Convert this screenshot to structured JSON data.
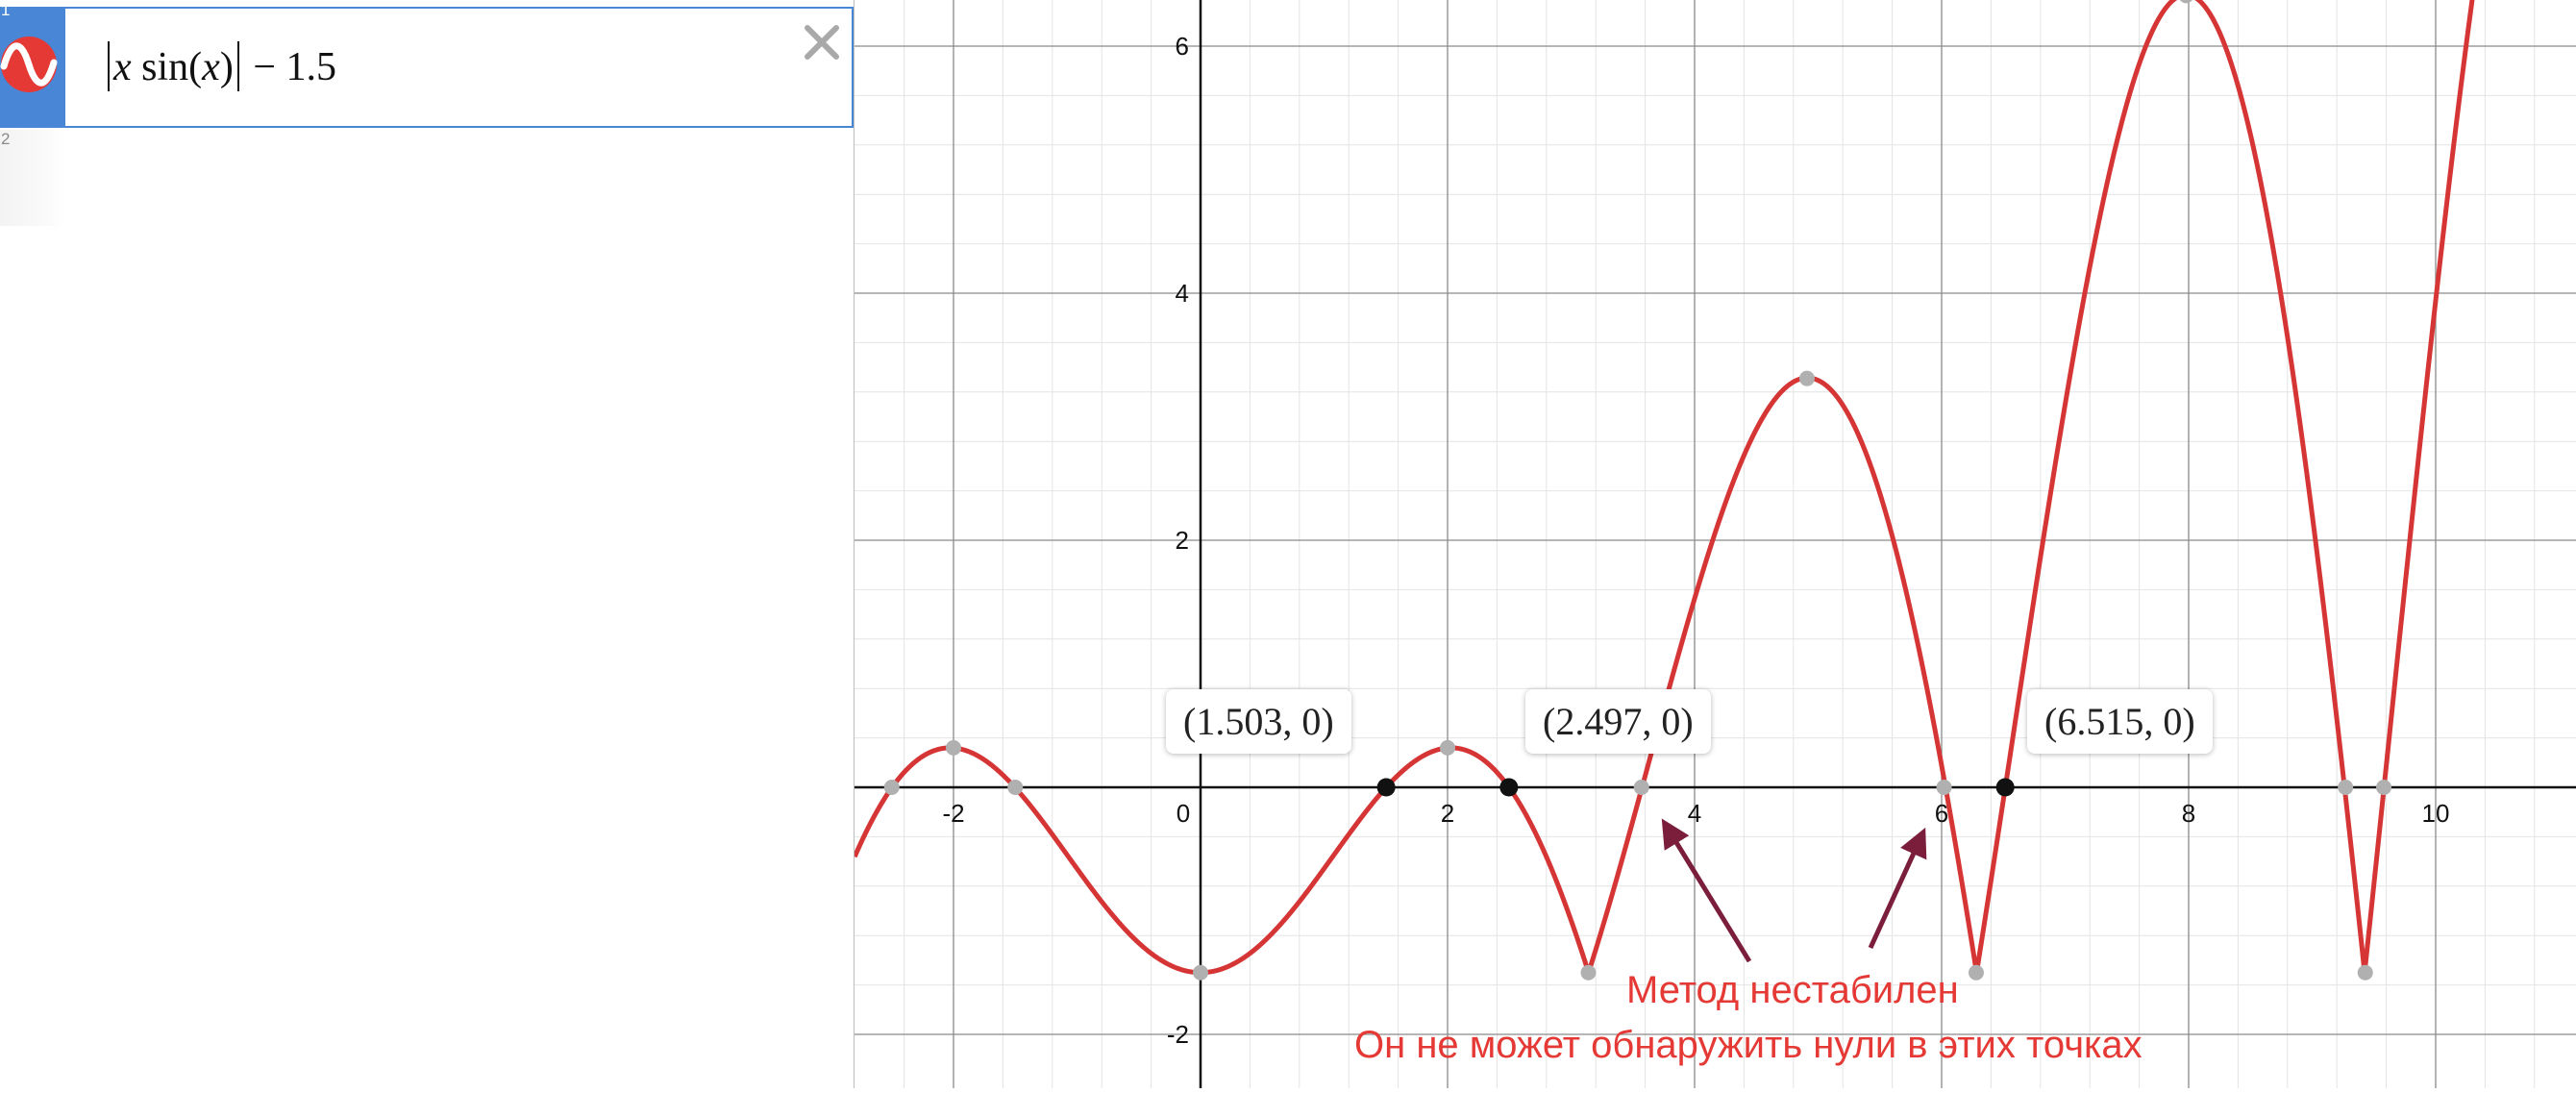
{
  "expression_list": {
    "expressions": [
      {
        "index": "1",
        "icon": "sine-wave-icon",
        "latex_parts": {
          "x": "x",
          "sin": "sin",
          "paren_open": "(",
          "arg": "x",
          "paren_close": ")",
          "rest": "− 1.5"
        }
      },
      {
        "index": "2"
      }
    ],
    "delete_glyph": "×"
  },
  "graph": {
    "x_ticks": [
      "-2",
      "0",
      "2",
      "4",
      "6",
      "8",
      "10"
    ],
    "y_ticks": [
      "6",
      "4",
      "2",
      "-2"
    ],
    "point_labels": [
      "(1.503, 0)",
      "(2.497, 0)",
      "(6.515, 0)"
    ],
    "annotation_line1": "Метод нестабилен",
    "annotation_line2": "Он не может обнаружить нули в этих точках",
    "colors": {
      "curve": "#d63535",
      "arrow": "#7b1e3c",
      "annotation": "#e53935",
      "accent": "#4a86d6"
    }
  },
  "chart_data": {
    "type": "line",
    "function": "|x sin(x)| - 1.5",
    "xlim": [
      -2.8,
      11.1
    ],
    "ylim": [
      -2.4,
      6.4
    ],
    "grid": true,
    "marked_zeros": [
      [
        1.503,
        0
      ],
      [
        2.497,
        0
      ],
      [
        6.515,
        0
      ]
    ],
    "grey_points": [
      [
        -2.5,
        0
      ],
      [
        -2.0,
        0.32
      ],
      [
        -1.5,
        0
      ],
      [
        0,
        -1.5
      ],
      [
        2.0,
        0.32
      ],
      [
        3.14,
        -1.5
      ],
      [
        3.57,
        0
      ],
      [
        4.91,
        3.31
      ],
      [
        6.02,
        0
      ],
      [
        6.28,
        -1.5
      ],
      [
        7.98,
        6.41
      ],
      [
        9.27,
        0
      ],
      [
        9.43,
        -1.5
      ],
      [
        9.58,
        0
      ]
    ]
  }
}
